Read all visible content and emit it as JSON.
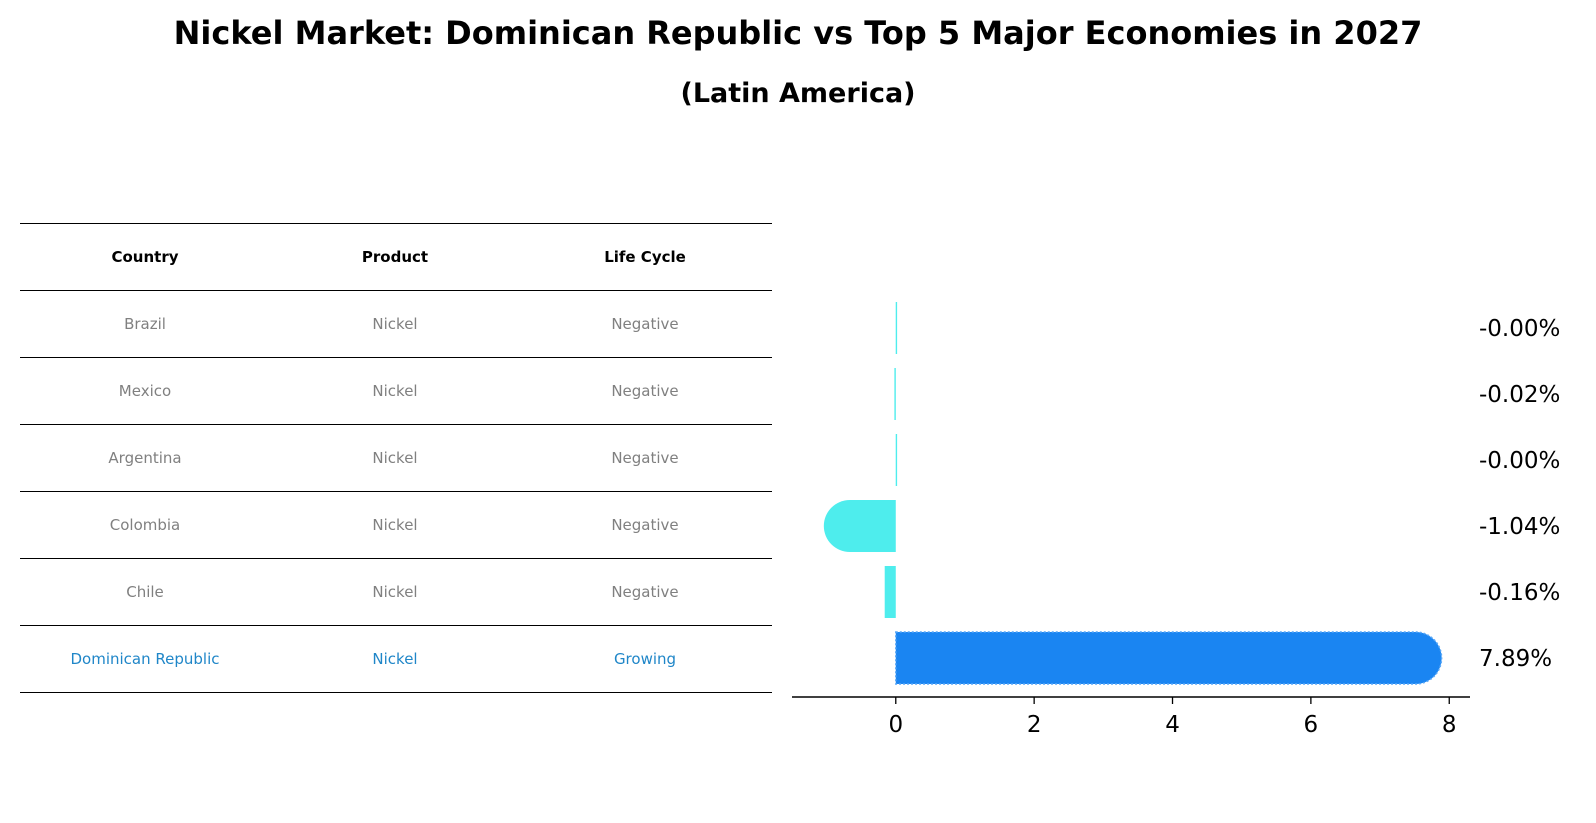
{
  "title": "Nickel Market: Dominican Republic vs Top 5 Major Economies in 2027",
  "subtitle": "(Latin America)",
  "table": {
    "headers": [
      "Country",
      "Product",
      "Life Cycle"
    ],
    "rows": [
      [
        "Brazil",
        "Nickel",
        "Negative"
      ],
      [
        "Mexico",
        "Nickel",
        "Negative"
      ],
      [
        "Argentina",
        "Nickel",
        "Negative"
      ],
      [
        "Colombia",
        "Nickel",
        "Negative"
      ],
      [
        "Chile",
        "Nickel",
        "Negative"
      ],
      [
        "Dominican Republic",
        "Nickel",
        "Growing"
      ]
    ]
  },
  "colors": {
    "negative_bar": "#4eeded",
    "highlight_bar": "#1a85f2",
    "highlight_text": "#1f86c8",
    "muted_text": "#808080"
  },
  "chart_data": {
    "type": "bar",
    "orientation": "horizontal",
    "categories": [
      "Brazil",
      "Mexico",
      "Argentina",
      "Colombia",
      "Chile",
      "Dominican Republic"
    ],
    "values": [
      -0.001,
      -0.02,
      -0.001,
      -1.04,
      -0.16,
      7.89
    ],
    "value_labels": [
      "-0.00%",
      "-0.02%",
      "-0.00%",
      "-1.04%",
      "-0.16%",
      "7.89%"
    ],
    "highlight": "Dominican Republic",
    "xlim": [
      -1.5,
      8.3
    ],
    "xticks": [
      0,
      2,
      4,
      6,
      8
    ],
    "grid": false
  }
}
